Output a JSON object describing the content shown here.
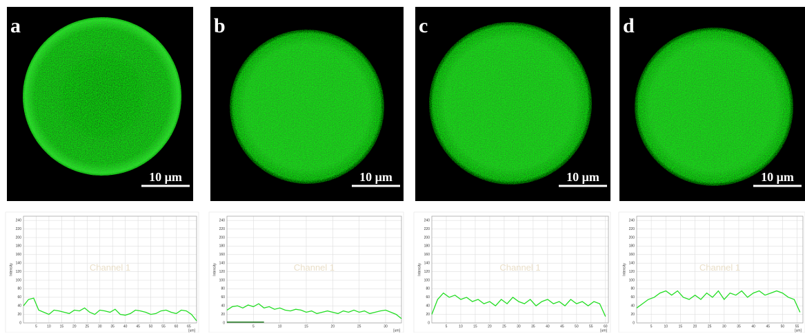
{
  "panels": [
    {
      "label": "a",
      "scale_bar": "10 μm"
    },
    {
      "label": "b",
      "scale_bar": "10 μm"
    },
    {
      "label": "c",
      "scale_bar": "10 μm"
    },
    {
      "label": "d",
      "scale_bar": "10 μm"
    }
  ],
  "chart_data": [
    {
      "type": "line",
      "watermark": "Channel 1",
      "y_label": "Intensity",
      "x_unit": "[um]",
      "xlim": [
        0,
        68
      ],
      "xticks": [
        5,
        10,
        15,
        20,
        25,
        30,
        35,
        40,
        45,
        50,
        55,
        60,
        65
      ],
      "ylim": [
        0,
        250
      ],
      "yticks": [
        0,
        20,
        40,
        60,
        80,
        100,
        120,
        140,
        160,
        180,
        200,
        220,
        240
      ],
      "grid": true,
      "series": [
        {
          "color": "#22dd22",
          "x": [
            0,
            2,
            4,
            6,
            8,
            10,
            12,
            14,
            16,
            18,
            20,
            22,
            24,
            26,
            28,
            30,
            32,
            34,
            36,
            38,
            40,
            42,
            44,
            46,
            48,
            50,
            52,
            54,
            56,
            58,
            60,
            62,
            64,
            66,
            68
          ],
          "values": [
            40,
            55,
            58,
            30,
            25,
            20,
            30,
            28,
            25,
            22,
            30,
            28,
            35,
            25,
            20,
            30,
            28,
            25,
            32,
            20,
            18,
            22,
            30,
            28,
            25,
            20,
            22,
            28,
            30,
            25,
            22,
            30,
            28,
            20,
            5
          ]
        }
      ]
    },
    {
      "type": "line",
      "watermark": "Channel 1",
      "y_label": "Intensity",
      "x_unit": "[um]",
      "xlim": [
        0,
        33
      ],
      "xticks": [
        5,
        10,
        15,
        20,
        25,
        30
      ],
      "ylim": [
        0,
        250
      ],
      "yticks": [
        0,
        20,
        40,
        60,
        80,
        100,
        120,
        140,
        160,
        180,
        200,
        220,
        240
      ],
      "grid": true,
      "series": [
        {
          "color": "#22dd22",
          "x": [
            0,
            1,
            2,
            3,
            4,
            5,
            6,
            7,
            8,
            9,
            10,
            11,
            12,
            13,
            14,
            15,
            16,
            17,
            18,
            19,
            20,
            21,
            22,
            23,
            24,
            25,
            26,
            27,
            28,
            29,
            30,
            31,
            32,
            33
          ],
          "values": [
            30,
            38,
            40,
            35,
            42,
            38,
            45,
            35,
            38,
            32,
            35,
            30,
            28,
            32,
            30,
            25,
            28,
            22,
            25,
            28,
            25,
            22,
            28,
            25,
            30,
            25,
            28,
            22,
            25,
            28,
            30,
            25,
            20,
            10
          ]
        },
        {
          "color": "#117711",
          "x": [
            0,
            7
          ],
          "values": [
            2,
            2
          ]
        }
      ]
    },
    {
      "type": "line",
      "watermark": "Channel 1",
      "y_label": "Intensity",
      "x_unit": "[um]",
      "xlim": [
        0,
        61
      ],
      "xticks": [
        5,
        10,
        15,
        20,
        25,
        30,
        35,
        40,
        45,
        50,
        55,
        60
      ],
      "ylim": [
        0,
        250
      ],
      "yticks": [
        0,
        20,
        40,
        60,
        80,
        100,
        120,
        140,
        160,
        180,
        200,
        220,
        240
      ],
      "grid": true,
      "series": [
        {
          "color": "#22dd22",
          "x": [
            0,
            2,
            4,
            6,
            8,
            10,
            12,
            14,
            16,
            18,
            20,
            22,
            24,
            26,
            28,
            30,
            32,
            34,
            36,
            38,
            40,
            42,
            44,
            46,
            48,
            50,
            52,
            54,
            56,
            58,
            60
          ],
          "values": [
            20,
            55,
            70,
            60,
            65,
            55,
            60,
            50,
            55,
            45,
            50,
            40,
            55,
            45,
            60,
            50,
            45,
            55,
            40,
            50,
            55,
            45,
            50,
            40,
            55,
            45,
            50,
            40,
            50,
            45,
            15
          ]
        }
      ]
    },
    {
      "type": "line",
      "watermark": "Channel 1",
      "y_label": "Intensity",
      "x_unit": "[um]",
      "xlim": [
        0,
        57
      ],
      "xticks": [
        5,
        10,
        15,
        20,
        25,
        30,
        35,
        40,
        45,
        50,
        55
      ],
      "ylim": [
        0,
        250
      ],
      "yticks": [
        0,
        20,
        40,
        60,
        80,
        100,
        120,
        140,
        160,
        180,
        200,
        220,
        240
      ],
      "grid": true,
      "series": [
        {
          "color": "#22dd22",
          "x": [
            0,
            2,
            4,
            6,
            8,
            10,
            12,
            14,
            16,
            18,
            20,
            22,
            24,
            26,
            28,
            30,
            32,
            34,
            36,
            38,
            40,
            42,
            44,
            46,
            48,
            50,
            52,
            54,
            56
          ],
          "values": [
            35,
            45,
            55,
            60,
            70,
            75,
            65,
            75,
            60,
            55,
            65,
            55,
            70,
            60,
            75,
            55,
            70,
            65,
            75,
            60,
            70,
            75,
            65,
            70,
            75,
            70,
            60,
            55,
            25
          ]
        }
      ]
    }
  ]
}
